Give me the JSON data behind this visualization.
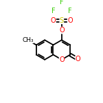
{
  "bg_color": "#ffffff",
  "atom_colors": {
    "O": "#ff0000",
    "F": "#33cc00",
    "S": "#cccc00",
    "C": "#000000"
  },
  "bond_color": "#000000",
  "bond_width": 1.3,
  "font_size_atom": 7.0,
  "font_size_ch3": 6.5
}
